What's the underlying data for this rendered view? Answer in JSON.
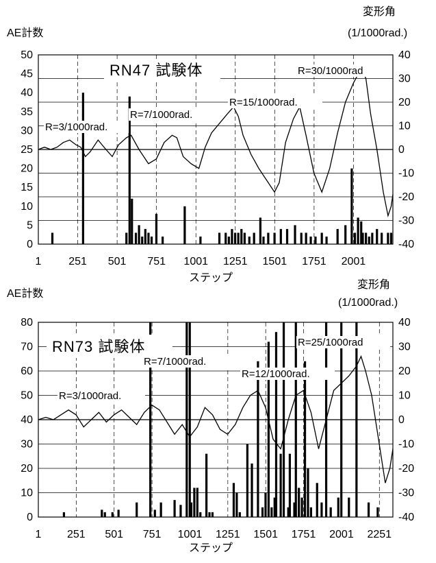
{
  "chart_data": [
    {
      "type": "line",
      "title": "RN47 試験体",
      "xlabel": "ステップ",
      "ylabel_left": "AE計数",
      "ylabel_right": "変形角",
      "ylabel_right_unit": "(1/1000rad.)",
      "x_ticks": [
        "1",
        "251",
        "501",
        "751",
        "1001",
        "1251",
        "1501",
        "1751",
        "2001"
      ],
      "xlim": [
        1,
        2251
      ],
      "ylim_left": [
        0,
        50
      ],
      "yticks_left": [
        "0",
        "5",
        "10",
        "15",
        "20",
        "25",
        "30",
        "35",
        "40",
        "45",
        "50"
      ],
      "ylim_right": [
        -40,
        40
      ],
      "yticks_right": [
        "-40",
        "-30",
        "-20",
        "-10",
        "0",
        "10",
        "20",
        "30",
        "40"
      ],
      "annotations": [
        "R=3/1000rad.",
        "R=7/1000rad.",
        "R=15/1000rad.",
        "R=30/1000rad"
      ],
      "grid": true,
      "series": [
        {
          "axis": "right",
          "x": [
            1,
            40,
            80,
            120,
            160,
            200,
            240,
            270,
            300,
            330,
            380,
            430,
            470,
            510,
            560,
            590,
            640,
            700,
            750,
            800,
            850,
            880,
            920,
            970,
            1020,
            1060,
            1100,
            1150,
            1200,
            1240,
            1270,
            1300,
            1350,
            1400,
            1450,
            1500,
            1530,
            1570,
            1620,
            1660,
            1700,
            1750,
            1800,
            1850,
            1900,
            1950,
            2000,
            2040,
            2060,
            2080,
            2110,
            2150,
            2190,
            2220,
            2240,
            2251
          ],
          "y": [
            0,
            1,
            0,
            1,
            3,
            4,
            2,
            1,
            -3,
            -1,
            4,
            0,
            -3,
            2,
            5,
            6,
            0,
            -6,
            -4,
            3,
            6,
            5,
            -3,
            -6,
            -8,
            1,
            7,
            11,
            15,
            18,
            14,
            6,
            -2,
            -8,
            -13,
            -18,
            -14,
            3,
            13,
            18,
            6,
            -10,
            -18,
            -8,
            7,
            20,
            28,
            33,
            33,
            30,
            15,
            0,
            -18,
            -28,
            -24,
            -19
          ]
        },
        {
          "axis": "left",
          "type": "bar",
          "x": [
            90,
            285,
            560,
            580,
            595,
            620,
            640,
            660,
            680,
            700,
            720,
            750,
            790,
            930,
            1030,
            1150,
            1190,
            1210,
            1230,
            1250,
            1270,
            1290,
            1310,
            1340,
            1370,
            1410,
            1430,
            1460,
            1500,
            1540,
            1580,
            1630,
            1670,
            1700,
            1730,
            1760,
            1800,
            1830,
            1900,
            1950,
            1990,
            2010,
            2030,
            2050,
            2060,
            2080,
            2100,
            2120,
            2150,
            2180,
            2220,
            2240
          ],
          "y": [
            3,
            40,
            3,
            39,
            12,
            3,
            5,
            2,
            4,
            3,
            2,
            8,
            2,
            10,
            2,
            3,
            3,
            2,
            4,
            3,
            3,
            4,
            3,
            2,
            3,
            7,
            2,
            3,
            3,
            4,
            4,
            5,
            3,
            3,
            2,
            2,
            3,
            2,
            4,
            5,
            20,
            3,
            7,
            6,
            3,
            3,
            2,
            3,
            4,
            3,
            3,
            3
          ]
        }
      ]
    },
    {
      "type": "line",
      "title": "RN73 試験体",
      "xlabel": "ステップ",
      "ylabel_left": "AE計数",
      "ylabel_right": "変形角",
      "ylabel_right_unit": "(1/1000rad.)",
      "x_ticks": [
        "1",
        "251",
        "501",
        "751",
        "1001",
        "1251",
        "1501",
        "1751",
        "2001",
        "2251"
      ],
      "xlim": [
        1,
        2340
      ],
      "ylim_left": [
        0,
        80
      ],
      "yticks_left": [
        "0",
        "10",
        "20",
        "30",
        "40",
        "50",
        "60",
        "70",
        "80"
      ],
      "ylim_right": [
        -40,
        40
      ],
      "yticks_right": [
        "-40",
        "-30",
        "-20",
        "-10",
        "0",
        "10",
        "20",
        "30",
        "40"
      ],
      "annotations": [
        "R=3/1000rad.",
        "R=7/1000rad.",
        "R=12/1000rad.",
        "R=25/1000rad"
      ],
      "grid": true,
      "series": [
        {
          "axis": "right",
          "x": [
            1,
            50,
            100,
            150,
            200,
            250,
            300,
            350,
            400,
            450,
            500,
            550,
            600,
            650,
            700,
            750,
            800,
            850,
            900,
            950,
            1000,
            1050,
            1100,
            1150,
            1200,
            1250,
            1300,
            1350,
            1400,
            1450,
            1500,
            1550,
            1600,
            1650,
            1700,
            1750,
            1800,
            1850,
            1900,
            1950,
            2000,
            2050,
            2100,
            2130,
            2160,
            2200,
            2250,
            2290,
            2320,
            2340
          ],
          "y": [
            0,
            1,
            0,
            2,
            4,
            2,
            -3,
            0,
            3,
            -1,
            2,
            4,
            1,
            -2,
            3,
            6,
            4,
            -1,
            -6,
            -2,
            -7,
            -3,
            5,
            2,
            -4,
            -6,
            -2,
            5,
            10,
            12,
            5,
            -8,
            -12,
            0,
            10,
            12,
            3,
            -12,
            0,
            12,
            15,
            18,
            22,
            26,
            20,
            10,
            -10,
            -26,
            -20,
            -12
          ]
        },
        {
          "axis": "left",
          "type": "bar",
          "x": [
            170,
            420,
            440,
            490,
            530,
            650,
            740,
            770,
            810,
            900,
            940,
            980,
            1000,
            1010,
            1030,
            1050,
            1070,
            1110,
            1130,
            1150,
            1290,
            1310,
            1330,
            1380,
            1410,
            1450,
            1480,
            1500,
            1520,
            1540,
            1560,
            1570,
            1600,
            1620,
            1650,
            1660,
            1690,
            1700,
            1720,
            1740,
            1760,
            1780,
            1800,
            1840,
            1870,
            1900,
            1930,
            1980,
            2000,
            2050,
            2100,
            2180,
            2240
          ],
          "y": [
            2,
            3,
            2,
            2,
            3,
            6,
            80,
            3,
            6,
            7,
            5,
            80,
            80,
            6,
            12,
            12,
            2,
            26,
            2,
            2,
            14,
            10,
            2,
            30,
            22,
            64,
            4,
            10,
            72,
            4,
            8,
            76,
            26,
            80,
            4,
            26,
            6,
            80,
            12,
            8,
            64,
            20,
            4,
            14,
            6,
            80,
            4,
            8,
            80,
            8,
            80,
            6,
            4
          ]
        }
      ]
    }
  ]
}
